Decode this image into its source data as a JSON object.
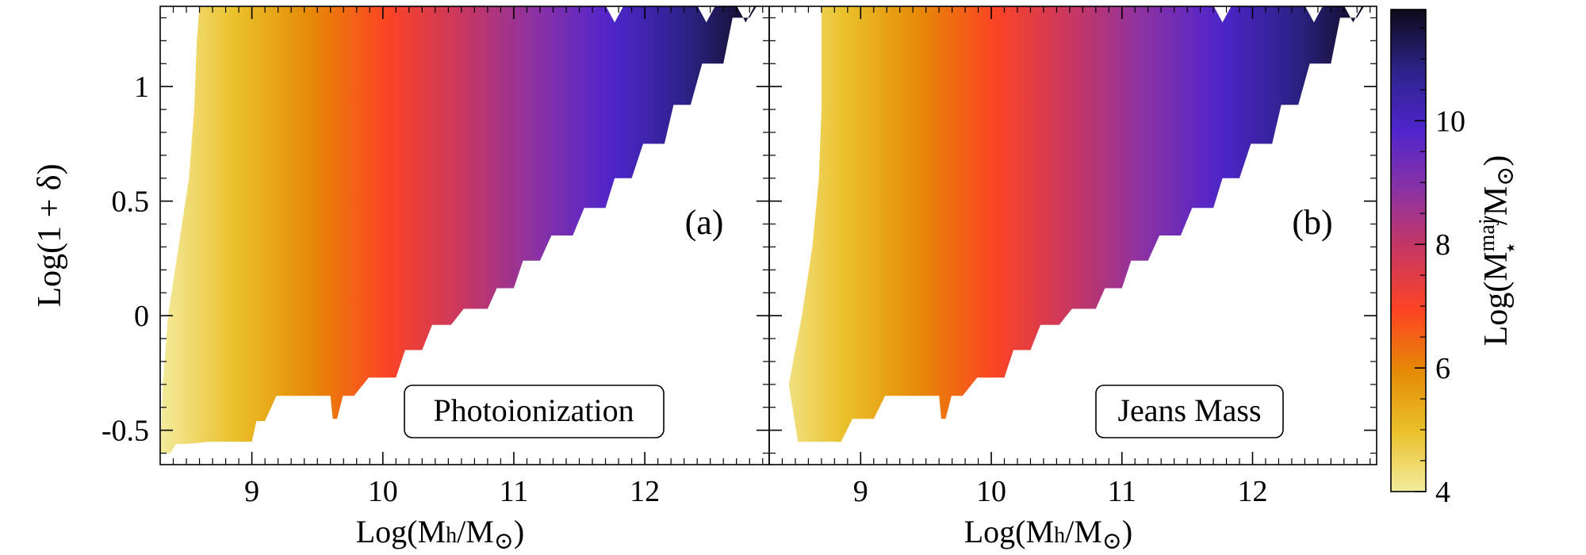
{
  "chart_data": {
    "type": "heatmap",
    "shared": {
      "xlabel": "Log(M",
      "xlabel_sub": "h",
      "xlabel_mid": "/M",
      "xlabel_sun": "⊙",
      "xlabel_close": ")",
      "ylabel": "Log(1 + δ)",
      "xlim": [
        8.3,
        12.95
      ],
      "ylim": [
        -0.65,
        1.35
      ],
      "xticks": [
        9,
        10,
        11,
        12
      ],
      "xtick_labels": [
        "9",
        "10",
        "11",
        "12"
      ],
      "yticks": [
        -0.5,
        0,
        0.5,
        1
      ],
      "ytick_labels": [
        "-0.5",
        "0",
        "0.5",
        "1"
      ]
    },
    "panels": [
      {
        "id": "a",
        "panel_label": "(a)",
        "box_label": "Photoionization",
        "filled_min_y_vs_x": [
          [
            8.38,
            -0.6
          ],
          [
            8.5,
            -0.56
          ],
          [
            9.0,
            -0.55
          ],
          [
            9.1,
            -0.46
          ],
          [
            9.35,
            -0.35
          ],
          [
            9.6,
            -0.35
          ],
          [
            9.65,
            -0.45
          ],
          [
            9.78,
            -0.35
          ],
          [
            10.1,
            -0.27
          ],
          [
            10.3,
            -0.15
          ],
          [
            10.52,
            -0.04
          ],
          [
            10.8,
            0.03
          ],
          [
            11.0,
            0.12
          ],
          [
            11.2,
            0.24
          ],
          [
            11.45,
            0.35
          ],
          [
            11.7,
            0.47
          ],
          [
            11.9,
            0.6
          ],
          [
            12.15,
            0.75
          ],
          [
            12.35,
            0.92
          ],
          [
            12.6,
            1.1
          ],
          [
            12.8,
            1.3
          ]
        ],
        "filled_min_x_vs_y": [
          [
            -0.6,
            8.3
          ],
          [
            -0.3,
            8.32
          ],
          [
            0.0,
            8.36
          ],
          [
            0.3,
            8.44
          ],
          [
            0.6,
            8.52
          ],
          [
            0.9,
            8.56
          ],
          [
            1.2,
            8.58
          ],
          [
            1.35,
            8.6
          ]
        ],
        "top_notches_x": [
          11.77,
          12.47,
          12.77
        ]
      },
      {
        "id": "b",
        "panel_label": "(b)",
        "box_label": "Jeans Mass",
        "filled_min_y_vs_x": [
          [
            8.55,
            -0.55
          ],
          [
            8.85,
            -0.55
          ],
          [
            9.1,
            -0.45
          ],
          [
            9.35,
            -0.35
          ],
          [
            9.6,
            -0.35
          ],
          [
            9.65,
            -0.45
          ],
          [
            9.78,
            -0.35
          ],
          [
            10.1,
            -0.27
          ],
          [
            10.3,
            -0.15
          ],
          [
            10.52,
            -0.04
          ],
          [
            10.8,
            0.03
          ],
          [
            11.0,
            0.12
          ],
          [
            11.2,
            0.24
          ],
          [
            11.45,
            0.35
          ],
          [
            11.7,
            0.47
          ],
          [
            11.9,
            0.6
          ],
          [
            12.15,
            0.75
          ],
          [
            12.35,
            0.92
          ],
          [
            12.6,
            1.1
          ],
          [
            12.8,
            1.3
          ]
        ],
        "filled_min_x_vs_y": [
          [
            -0.55,
            8.52
          ],
          [
            -0.3,
            8.45
          ],
          [
            0.0,
            8.55
          ],
          [
            0.3,
            8.63
          ],
          [
            0.6,
            8.68
          ],
          [
            0.9,
            8.7
          ],
          [
            1.2,
            8.7
          ],
          [
            1.35,
            8.7
          ]
        ],
        "top_notches_x": [
          11.77,
          12.47,
          12.77
        ]
      }
    ],
    "colorbar": {
      "label": "Log(M",
      "label_sup": "maj",
      "label_sub": "⋆",
      "label_mid": "/M",
      "label_sun": "⊙",
      "label_close": ")",
      "range": [
        4,
        11.8
      ],
      "ticks": [
        4,
        6,
        8,
        10
      ],
      "tick_labels": [
        "4",
        "6",
        "8",
        "10"
      ],
      "colormap": [
        "#f3eb9e",
        "#eac12a",
        "#e58a05",
        "#fd4423",
        "#c9375f",
        "#8b32a4",
        "#4e25cc",
        "#2c2388",
        "#0e0b1a"
      ]
    },
    "color_model": "value ≈ 4 + 1.7*(x - 8.3)"
  }
}
